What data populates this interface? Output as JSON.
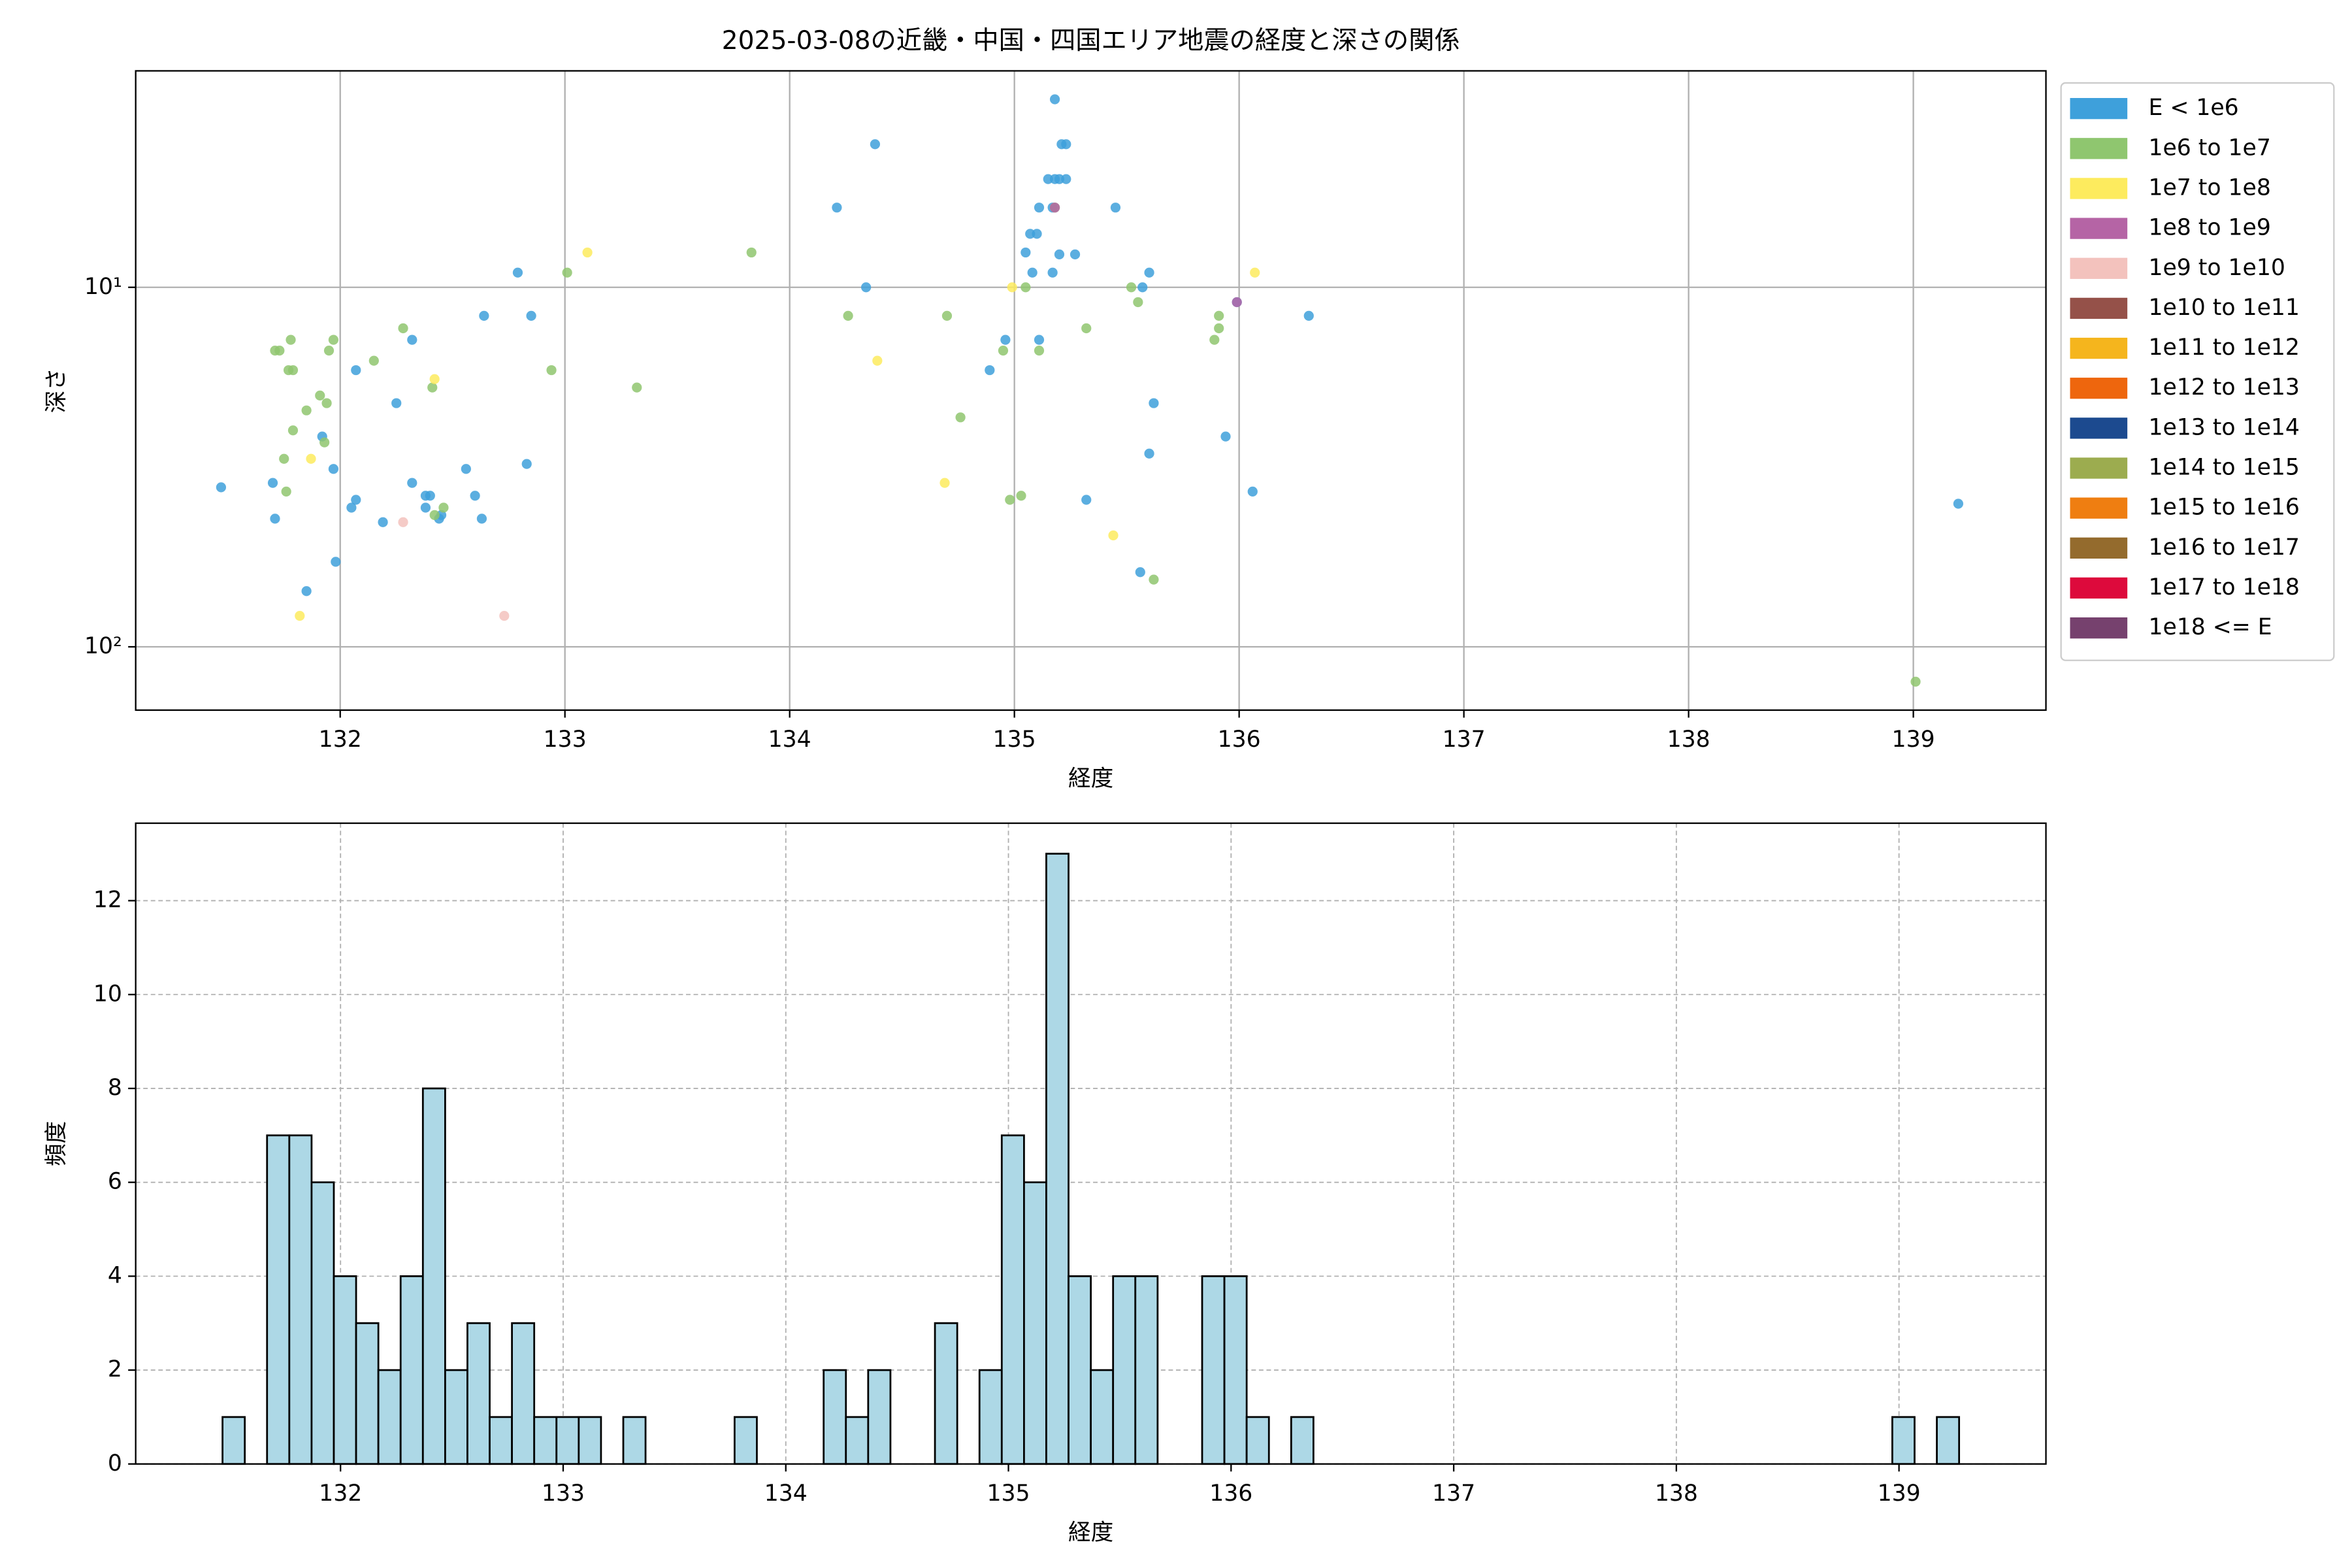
{
  "chart_data": [
    {
      "type": "scatter",
      "title": "2025-03-08の近畿・中国・四国エリア地震の経度と深さの関係",
      "x_label": "経度",
      "y_label": "深さ",
      "xlim": [
        131.09,
        139.59
      ],
      "xticks": [
        132,
        133,
        134,
        135,
        136,
        137,
        138,
        139
      ],
      "ylim": [
        150,
        2.5
      ],
      "y_scale": "log",
      "yticks": [
        {
          "value": 10,
          "label": "10¹"
        },
        {
          "value": 100,
          "label": "10²"
        }
      ],
      "grid": true,
      "legend": "outside right",
      "series": [
        {
          "name": "E < 1e6",
          "color": "#3ea0db",
          "x": [
            131.47,
            131.7,
            131.71,
            131.85,
            131.92,
            131.97,
            131.98,
            132.07,
            132.05,
            132.07,
            132.19,
            132.25,
            132.32,
            132.32,
            132.38,
            132.4,
            132.38,
            132.44,
            132.45,
            132.56,
            132.6,
            132.63,
            132.64,
            132.83,
            132.79,
            132.85,
            134.21,
            134.34,
            134.38,
            134.89,
            134.96,
            135.18,
            135.21,
            135.23,
            135.15,
            135.18,
            135.2,
            135.23,
            135.11,
            135.17,
            135.45,
            135.07,
            135.1,
            135.05,
            135.08,
            135.17,
            135.2,
            135.27,
            135.6,
            135.57,
            135.99,
            136.31,
            135.11,
            135.62,
            135.94,
            135.6,
            135.32,
            136.06,
            135.56,
            139.2
          ],
          "y": [
            36,
            35,
            44,
            70,
            26,
            32,
            58,
            17,
            41,
            39,
            45,
            21,
            14,
            35,
            38,
            38,
            41,
            44,
            43,
            32,
            38,
            44,
            12,
            31,
            9.1,
            12,
            6.0,
            10,
            4.0,
            17,
            14,
            3.0,
            4.0,
            4.0,
            5.0,
            5.0,
            5.0,
            5.0,
            6.0,
            6.0,
            6.0,
            7.1,
            7.1,
            8.0,
            9.1,
            9.1,
            8.1,
            8.1,
            9.1,
            10,
            11,
            12,
            14,
            21,
            26,
            29,
            39,
            37,
            62,
            40
          ]
        },
        {
          "name": "1e6 to 1e7",
          "color": "#8fc66f",
          "x": [
            131.71,
            131.73,
            131.78,
            131.77,
            131.79,
            131.85,
            131.79,
            131.75,
            131.76,
            131.91,
            131.94,
            131.93,
            131.95,
            131.97,
            132.15,
            132.28,
            132.41,
            132.42,
            132.46,
            132.94,
            133.01,
            133.32,
            133.83,
            134.26,
            134.7,
            134.76,
            134.95,
            134.98,
            135.03,
            135.05,
            135.11,
            135.18,
            135.32,
            135.52,
            135.55,
            135.62,
            135.89,
            135.91,
            135.91,
            139.01
          ],
          "y": [
            15,
            15,
            14,
            17,
            17,
            22,
            25,
            30,
            37,
            20,
            21,
            27,
            15,
            14,
            16,
            13,
            19,
            43,
            41,
            17,
            9.1,
            19,
            8.0,
            12,
            12,
            23,
            15,
            39,
            38,
            10,
            15,
            6.0,
            13,
            10,
            11,
            65,
            14,
            13,
            12,
            125
          ]
        },
        {
          "name": "1e7 to 1e8",
          "color": "#fdeb5e",
          "x": [
            131.87,
            131.82,
            132.42,
            133.1,
            134.39,
            134.69,
            134.99,
            135.44,
            136.07
          ],
          "y": [
            30,
            82,
            18,
            8.0,
            16,
            35,
            10,
            49,
            9.1
          ]
        },
        {
          "name": "1e8 to 1e9",
          "color": "#b564a5",
          "x": [
            135.18,
            135.99
          ],
          "y": [
            6.0,
            11
          ]
        },
        {
          "name": "1e9 to 1e10",
          "color": "#f3c2bd",
          "x": [
            132.28,
            132.73
          ],
          "y": [
            45,
            82
          ]
        },
        {
          "name": "1e10 to 1e11",
          "color": "#955149",
          "x": [],
          "y": []
        },
        {
          "name": "1e11 to 1e12",
          "color": "#f5b51d",
          "x": [],
          "y": []
        },
        {
          "name": "1e12 to 1e13",
          "color": "#ee660d",
          "x": [],
          "y": []
        },
        {
          "name": "1e13 to 1e14",
          "color": "#1c4a8f",
          "x": [],
          "y": []
        },
        {
          "name": "1e14 to 1e15",
          "color": "#9cac4f",
          "x": [],
          "y": []
        },
        {
          "name": "1e15 to 1e16",
          "color": "#ef7e11",
          "x": [],
          "y": []
        },
        {
          "name": "1e16 to 1e17",
          "color": "#946b2d",
          "x": [],
          "y": []
        },
        {
          "name": "1e17 to 1e18",
          "color": "#dd0a3c",
          "x": [],
          "y": []
        },
        {
          "name": "1e18 <= E",
          "color": "#76416e",
          "x": [],
          "y": []
        }
      ]
    },
    {
      "type": "histogram",
      "x_label": "経度",
      "y_label": "頻度",
      "xlim": [
        131.08,
        139.66
      ],
      "xticks": [
        132,
        133,
        134,
        135,
        136,
        137,
        138,
        139
      ],
      "ylim": [
        0,
        13.65
      ],
      "yticks": [
        0,
        2,
        4,
        6,
        8,
        10,
        12
      ],
      "grid": true,
      "grid_style": "dashed",
      "color": "#add8e6",
      "edge_color": "#000000",
      "bins": [
        131.47,
        131.57,
        131.67,
        131.77,
        131.87,
        131.97,
        132.07,
        132.17,
        132.27,
        132.37,
        132.47,
        132.57,
        132.67,
        132.77,
        132.87,
        132.97,
        133.07,
        133.17,
        133.27,
        133.37,
        133.47,
        133.57,
        133.67,
        133.77,
        133.87,
        133.97,
        134.07,
        134.17,
        134.27,
        134.37,
        134.47,
        134.57,
        134.67,
        134.77,
        134.87,
        134.97,
        135.07,
        135.17,
        135.27,
        135.37,
        135.47,
        135.57,
        135.67,
        135.77,
        135.87,
        135.97,
        136.07,
        136.17,
        136.27,
        136.37,
        136.47,
        136.57,
        136.67,
        136.77,
        136.87,
        136.97,
        137.07,
        137.17,
        137.27,
        137.37,
        137.47,
        137.57,
        137.67,
        137.77,
        137.87,
        137.97,
        138.07,
        138.17,
        138.27,
        138.37,
        138.47,
        138.57,
        138.67,
        138.77,
        138.87,
        138.97,
        139.07,
        139.17,
        139.27
      ],
      "values": [
        1,
        0,
        7,
        7,
        6,
        4,
        3,
        2,
        4,
        8,
        2,
        3,
        1,
        3,
        1,
        1,
        1,
        0,
        1,
        0,
        0,
        0,
        0,
        1,
        0,
        0,
        0,
        2,
        1,
        2,
        0,
        0,
        3,
        0,
        2,
        7,
        6,
        13,
        4,
        2,
        4,
        4,
        0,
        0,
        4,
        4,
        1,
        0,
        1,
        0,
        0,
        0,
        0,
        0,
        0,
        0,
        0,
        0,
        0,
        0,
        0,
        0,
        0,
        0,
        0,
        0,
        0,
        0,
        0,
        0,
        0,
        0,
        0,
        0,
        0,
        1,
        0,
        1
      ]
    }
  ]
}
